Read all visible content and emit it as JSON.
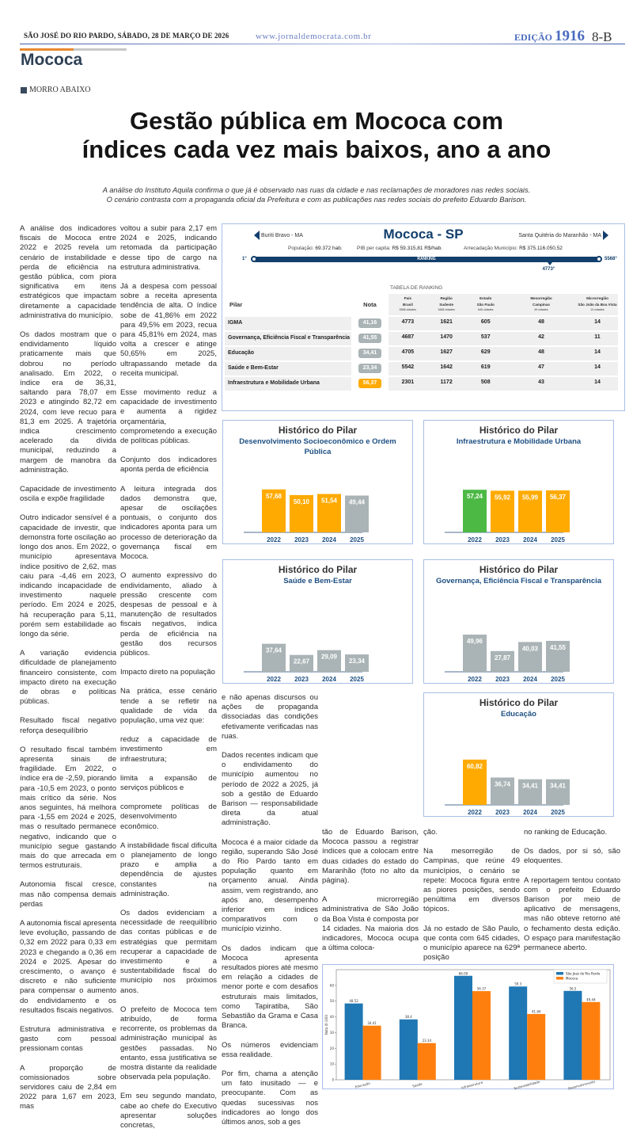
{
  "masthead": {
    "date": "SÃO JOSÉ DO RIO PARDO, SÁBADO, 28 DE MARÇO DE 2026",
    "url": "www.jornaldemocrata.com.br",
    "edition_label": "EDIÇÃO",
    "edition_number": "1916",
    "page": "8-B"
  },
  "section": "Mococa",
  "kicker": "MORRO ABAIXO",
  "headline": [
    "Gestão pública em Mococa com",
    "índices cada vez mais baixos, ano a ano"
  ],
  "deck": [
    "A análise do Instituto Aquila confirma o que já é observado nas ruas da cidade e nas reclamações de moradores nas redes sociais.",
    "O cenário contrasta com a propaganda oficial da Prefeitura e com as publicações nas redes sociais do prefeito Eduardo Barison."
  ],
  "ranking_widget": {
    "title": "Mococa - SP",
    "prev_city": "Buriti Bravo - MA",
    "next_city": "Santa Quitéria do Maranhão - MA",
    "population_label": "População:",
    "population": "69.372 hab.",
    "pib_label": "PIB per capita:",
    "pib": "R$ 59.315,81 R$/hab.",
    "revenue_label": "Arrecadação Município:",
    "revenue": "R$ 375.116.050,52",
    "bar_label": "RANKING",
    "min_label": "1°",
    "max_label": "5568°",
    "position": 4773,
    "total": 5568,
    "position_label": "4773°",
    "table_caption": "TABELA DE RANKING",
    "headers": {
      "pilar": "Pilar",
      "nota": "Nota",
      "cols": [
        {
          "l1": "País",
          "l2": "Brasil",
          "sub": "5568 cidades"
        },
        {
          "l1": "Região",
          "l2": "Sudeste",
          "sub": "1668 cidades"
        },
        {
          "l1": "Estado",
          "l2": "São Paulo",
          "sub": "645 cidades"
        },
        {
          "l1": "Mesorregião",
          "l2": "Campinas",
          "sub": "49 cidades"
        },
        {
          "l1": "Microrregião",
          "l2": "São João da Boa Vista",
          "sub": "14 cidades"
        }
      ]
    },
    "rows": [
      {
        "pilar": "IGMA",
        "nota": "41,16",
        "color": "#aab3b5",
        "ranks": [
          "4773",
          "1621",
          "605",
          "48",
          "14"
        ]
      },
      {
        "pilar": "Governança, Eficiência Fiscal e Transparência",
        "nota": "41,55",
        "color": "#aab3b5",
        "ranks": [
          "4687",
          "1470",
          "537",
          "42",
          "11"
        ]
      },
      {
        "pilar": "Educação",
        "nota": "34,41",
        "color": "#aab3b5",
        "ranks": [
          "4705",
          "1627",
          "629",
          "48",
          "14"
        ]
      },
      {
        "pilar": "Saúde e Bem-Estar",
        "nota": "23,34",
        "color": "#aab3b5",
        "ranks": [
          "5542",
          "1642",
          "619",
          "47",
          "14"
        ]
      },
      {
        "pilar": "Infraestrutura e Mobilidade Urbana",
        "nota": "56,37",
        "color": "#ffaa00",
        "ranks": [
          "2301",
          "1172",
          "508",
          "43",
          "14"
        ]
      }
    ]
  },
  "columns": [
    [
      "A análise dos indicadores fiscais de Mococa entre 2022 e 2025 revela um cenário de instabilidade e perda de eficiência na gestão pública, com piora significativa em itens estratégicos que impactam diretamente a capacidade administrativa do município.",
      "Os dados mostram que o endividamento líquido praticamente mais que dobrou no período analisado. Em 2022, o índice era de 36,31, saltando para 78,07 em 2023 e atingindo 82,72 em 2024, com leve recuo para 81,3 em 2025. A trajetória indica crescimento acelerado da dívida municipal, reduzindo a margem de manobra da administração.",
      "Capacidade de investimento oscila e expõe fragilidade",
      "Outro indicador sensível é a capacidade de investir, que demonstra forte oscilação ao longo dos anos. Em 2022, o município apresentava índice positivo de 2,62, mas caiu para -4,46 em 2023, indicando incapacidade de investimento naquele período. Em 2024 e 2025, há recuperação para 5,11, porém sem estabilidade ao longo da série.",
      "A variação evidencia dificuldade de planejamento financeiro consistente, com impacto direto na execução de obras e políticas públicas.",
      "Resultado fiscal negativo reforça desequilíbrio",
      "O resultado fiscal também apresenta sinais de fragilidade. Em 2022, o índice era de -2,59, piorando para -10,5 em 2023, o ponto mais crítico da série. Nos anos seguintes, há melhora para -1,55 em 2024 e 2025, mas o resultado permanece negativo, indicando que o município segue gastando mais do que arrecada em termos estruturais.",
      "Autonomia fiscal cresce, mas não compensa demais perdas",
      "A autonomia fiscal apresenta leve evolução, passando de 0,32 em 2022 para 0,33 em 2023 e chegando a 0,36 em 2024 e 2025. Apesar do crescimento, o avanço é discreto e não suficiente para compensar o aumento do endividamento e os resultados fiscais negativos.",
      "Estrutura administrativa e gasto com pessoal pressionam contas",
      "A proporção de comissionados sobre servidores caiu de 2,84 em 2022 para 1,67 em 2023, mas"
    ],
    [
      "voltou a subir para 2,17 em 2024 e 2025, indicando retomada da participação desse tipo de cargo na estrutura administrativa.",
      "Já a despesa com pessoal sobre a receita apresenta tendência de alta. O índice sobe de 41,86% em 2022 para 49,5% em 2023, recua para 45,81% em 2024, mas volta a crescer e atinge 50,65% em 2025, ultrapassando metade da receita municipal.",
      "Esse movimento reduz a capacidade de investimento e aumenta a rigidez orçamentária, comprometendo a execução de políticas públicas.",
      "Conjunto dos indicadores aponta perda de eficiência",
      "A leitura integrada dos dados demonstra que, apesar de oscilações pontuais, o conjunto dos indicadores aponta para um processo de deterioração da governança fiscal em Mococa.",
      "O aumento expressivo do endividamento, aliado à pressão crescente com despesas de pessoal e à manutenção de resultados fiscais negativos, indica perda de eficiência na gestão dos recursos públicos.",
      "Impacto direto na população",
      "Na prática, esse cenário tende a se refletir na qualidade de vida da população, uma vez que:",
      "reduz a capacidade de investimento em infraestrutura;",
      "limita a expansão de serviços públicos e",
      "compromete políticas de desenvolvimento econômico.",
      "A instabilidade fiscal dificulta o planejamento de longo prazo e amplia a dependência de ajustes constantes na administração.",
      "Os dados evidenciam a necessidade de reequilíbrio das contas públicas e de estratégias que permitam recuperar a capacidade de investimento e a sustentabilidade fiscal do município nos próximos anos.",
      "O prefeito de Mococa tem atribuído, de forma recorrente, os problemas da administração municipal às gestões passadas. No entanto, essa justificativa se mostra distante da realidade observada pela população.",
      "Em seu segundo mandato, cabe ao chefe do Executivo apresentar soluções concretas,"
    ],
    [
      "e não apenas discursos ou ações de propaganda dissociadas das condições efetivamente verificadas nas ruas.",
      "Dados recentes indicam que o endividamento do município aumentou no período de 2022 a 2025, já sob a gestão de Eduardo Barison — responsabilidade direta da atual administração.",
      "Mococa é a maior cidade da região, superando São José do Rio Pardo tanto em população quanto em orçamento anual. Ainda assim, vem registrando, ano após ano, desempenho inferior em índices comparativos com o município vizinho.",
      "Os dados indicam que Mococa apresenta resultados piores até mesmo em relação a cidades de menor porte e com desafios estruturais mais limitados, como Tapiratiba, São Sebastião da Grama e Casa Branca.",
      "Os números evidenciam essa realidade.",
      "Por fim, chama a atenção um fato inusitado — e preocupante. Com as quedas sucessivas nos indicadores ao longo dos últimos anos, sob a ges"
    ],
    [
      "tão de Eduardo Barison, Mococa passou a registrar índices que a colocam entre duas cidades do estado do Maranhão (foto no alto da página).",
      "A microrregião administrativa de São João da Boa Vista é composta por 14 cidades. Na maioria dos indicadores, Mococa ocupa a última coloca-"
    ],
    [
      "ção.",
      "Na mesorregião de Campinas, que reúne 49 municípios, o cenário se repete: Mococa figura entre as piores posições, sendo penúltima em diversos tópicos.",
      "Já no estado de São Paulo, que conta com 645 cidades, o município aparece na 629ª posição"
    ],
    [
      "no ranking de Educação.",
      "Os dados, por si só, são eloquentes.",
      "A reportagem tentou contato com o prefeito Eduardo Barison por meio de aplicativo de mensagens, mas não obteve retorno até o fechamento desta edição. O espaço para manifestação permanece aberto."
    ]
  ],
  "chart_data": [
    {
      "type": "bar",
      "title": "Histórico do Pilar",
      "subtitle": "Desenvolvimento Socioeconômico e Ordem Pública",
      "categories": [
        "2022",
        "2023",
        "2024",
        "2025"
      ],
      "values": [
        57.68,
        50.1,
        51.54,
        49.44
      ],
      "labels": [
        "57,68",
        "50,10",
        "51,54",
        "49,44"
      ],
      "colors": [
        "#ffaa00",
        "#ffaa00",
        "#ffaa00",
        "#aab3b5"
      ]
    },
    {
      "type": "bar",
      "title": "Histórico do Pilar",
      "subtitle": "Infraestrutura e Mobilidade Urbana",
      "categories": [
        "2022",
        "2023",
        "2024",
        "2025"
      ],
      "values": [
        57.24,
        55.92,
        55.99,
        56.37
      ],
      "labels": [
        "57,24",
        "55,92",
        "55,99",
        "56,37"
      ],
      "colors": [
        "#4cb944",
        "#ffaa00",
        "#ffaa00",
        "#ffaa00"
      ]
    },
    {
      "type": "bar",
      "title": "Histórico do Pilar",
      "subtitle": "Saúde e Bem-Estar",
      "categories": [
        "2022",
        "2023",
        "2024",
        "2025"
      ],
      "values": [
        37.64,
        22.67,
        29.09,
        23.34
      ],
      "labels": [
        "37,64",
        "22,67",
        "29,09",
        "23,34"
      ],
      "colors": [
        "#aab3b5",
        "#aab3b5",
        "#aab3b5",
        "#aab3b5"
      ]
    },
    {
      "type": "bar",
      "title": "Histórico do Pilar",
      "subtitle": "Governança, Eficiência Fiscal e Transparência",
      "categories": [
        "2022",
        "2023",
        "2024",
        "2025"
      ],
      "values": [
        49.96,
        27.87,
        40.03,
        41.55
      ],
      "labels": [
        "49,96",
        "27,87",
        "40,03",
        "41,55"
      ],
      "colors": [
        "#aab3b5",
        "#aab3b5",
        "#aab3b5",
        "#aab3b5"
      ]
    },
    {
      "type": "bar",
      "title": "Histórico do Pilar",
      "subtitle": "Educação",
      "categories": [
        "2022",
        "2023",
        "2024",
        "2025"
      ],
      "values": [
        60.82,
        36.74,
        34.41,
        34.41
      ],
      "labels": [
        "60,82",
        "36,74",
        "34,41",
        "34,41"
      ],
      "colors": [
        "#ffaa00",
        "#aab3b5",
        "#aab3b5",
        "#aab3b5"
      ]
    },
    {
      "type": "bar",
      "ylabel": "Nota (0-100)",
      "ylim": [
        0,
        70
      ],
      "yticks": [
        0,
        10,
        20,
        30,
        40,
        50,
        60
      ],
      "categories": [
        "Educação",
        "Saúde",
        "Infraestrutura",
        "Sustentabilidade",
        "Desenvolvimento"
      ],
      "legend": "top-right",
      "series": [
        {
          "name": "São José do Rio Pardo",
          "color": "#1f77b4",
          "values": [
            48.52,
            38.4,
            66.09,
            59.3,
            56.5
          ]
        },
        {
          "name": "Mococa",
          "color": "#ff7f0e",
          "values": [
            34.41,
            23.34,
            56.37,
            41.84,
            49.44
          ]
        }
      ]
    }
  ]
}
